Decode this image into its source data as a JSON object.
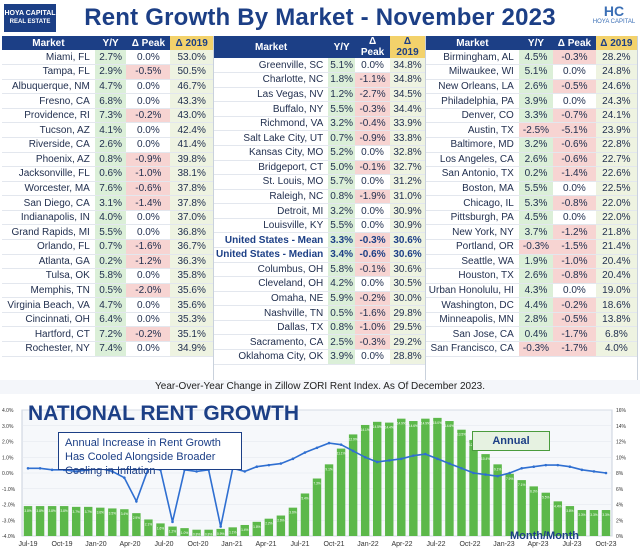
{
  "header": {
    "title": "Rent Growth By Market - November 2023",
    "logo_left_line1": "HOYA CAPITAL",
    "logo_left_line2": "REAL ESTATE",
    "logo_right_hc": "HC",
    "logo_right_sub": "HOYA CAPITAL"
  },
  "table": {
    "columns": [
      "Market",
      "Y/Y",
      "Δ Peak",
      "Δ 2019"
    ],
    "groups": [
      {
        "rows": [
          {
            "market": "Miami, FL",
            "yy": "2.7%",
            "peak": "0.0%",
            "d2019": "53.0%"
          },
          {
            "market": "Tampa, FL",
            "yy": "2.9%",
            "peak": "-0.5%",
            "d2019": "50.5%"
          },
          {
            "market": "Albuquerque, NM",
            "yy": "4.7%",
            "peak": "0.0%",
            "d2019": "46.7%"
          },
          {
            "market": "Fresno, CA",
            "yy": "6.8%",
            "peak": "0.0%",
            "d2019": "43.3%"
          },
          {
            "market": "Providence, RI",
            "yy": "7.3%",
            "peak": "-0.2%",
            "d2019": "43.0%"
          },
          {
            "market": "Tucson, AZ",
            "yy": "4.1%",
            "peak": "0.0%",
            "d2019": "42.4%"
          },
          {
            "market": "Riverside, CA",
            "yy": "2.6%",
            "peak": "0.0%",
            "d2019": "41.4%"
          },
          {
            "market": "Phoenix, AZ",
            "yy": "0.8%",
            "peak": "-0.9%",
            "d2019": "39.8%"
          },
          {
            "market": "Jacksonville, FL",
            "yy": "0.6%",
            "peak": "-1.0%",
            "d2019": "38.1%"
          },
          {
            "market": "Worcester, MA",
            "yy": "7.6%",
            "peak": "-0.6%",
            "d2019": "37.8%"
          },
          {
            "market": "San Diego, CA",
            "yy": "3.1%",
            "peak": "-1.4%",
            "d2019": "37.8%"
          },
          {
            "market": "Indianapolis, IN",
            "yy": "4.0%",
            "peak": "0.0%",
            "d2019": "37.0%"
          },
          {
            "market": "Grand Rapids, MI",
            "yy": "5.5%",
            "peak": "0.0%",
            "d2019": "36.8%"
          },
          {
            "market": "Orlando, FL",
            "yy": "0.7%",
            "peak": "-1.6%",
            "d2019": "36.7%"
          },
          {
            "market": "Atlanta, GA",
            "yy": "0.2%",
            "peak": "-1.2%",
            "d2019": "36.3%"
          },
          {
            "market": "Tulsa, OK",
            "yy": "5.8%",
            "peak": "0.0%",
            "d2019": "35.8%"
          },
          {
            "market": "Memphis, TN",
            "yy": "0.5%",
            "peak": "-2.0%",
            "d2019": "35.6%"
          },
          {
            "market": "Virginia Beach, VA",
            "yy": "4.7%",
            "peak": "0.0%",
            "d2019": "35.6%"
          },
          {
            "market": "Cincinnati, OH",
            "yy": "6.4%",
            "peak": "0.0%",
            "d2019": "35.3%"
          },
          {
            "market": "Hartford, CT",
            "yy": "7.2%",
            "peak": "-0.2%",
            "d2019": "35.1%"
          },
          {
            "market": "Rochester, NY",
            "yy": "7.4%",
            "peak": "0.0%",
            "d2019": "34.9%"
          }
        ]
      },
      {
        "rows": [
          {
            "market": "Greenville, SC",
            "yy": "5.1%",
            "peak": "0.0%",
            "d2019": "34.8%"
          },
          {
            "market": "Charlotte, NC",
            "yy": "1.8%",
            "peak": "-1.1%",
            "d2019": "34.8%"
          },
          {
            "market": "Las Vegas, NV",
            "yy": "1.2%",
            "peak": "-2.7%",
            "d2019": "34.5%"
          },
          {
            "market": "Buffalo, NY",
            "yy": "5.5%",
            "peak": "-0.3%",
            "d2019": "34.4%"
          },
          {
            "market": "Richmond, VA",
            "yy": "3.2%",
            "peak": "-0.4%",
            "d2019": "33.9%"
          },
          {
            "market": "Salt Lake City, UT",
            "yy": "0.7%",
            "peak": "-0.9%",
            "d2019": "33.8%"
          },
          {
            "market": "Kansas City, MO",
            "yy": "5.2%",
            "peak": "0.0%",
            "d2019": "32.8%"
          },
          {
            "market": "Bridgeport, CT",
            "yy": "5.0%",
            "peak": "-0.1%",
            "d2019": "32.7%"
          },
          {
            "market": "St. Louis, MO",
            "yy": "5.7%",
            "peak": "0.0%",
            "d2019": "31.2%"
          },
          {
            "market": "Raleigh, NC",
            "yy": "0.8%",
            "peak": "-1.9%",
            "d2019": "31.0%"
          },
          {
            "market": "Detroit, MI",
            "yy": "3.2%",
            "peak": "0.0%",
            "d2019": "30.9%"
          },
          {
            "market": "Louisville, KY",
            "yy": "5.5%",
            "peak": "0.0%",
            "d2019": "30.9%"
          },
          {
            "market": "United States - Mean",
            "yy": "3.3%",
            "peak": "-0.3%",
            "d2019": "30.6%",
            "us": true
          },
          {
            "market": "United States - Median",
            "yy": "3.4%",
            "peak": "-0.6%",
            "d2019": "30.6%",
            "us": true
          },
          {
            "market": "Columbus, OH",
            "yy": "5.8%",
            "peak": "-0.1%",
            "d2019": "30.6%"
          },
          {
            "market": "Cleveland, OH",
            "yy": "4.2%",
            "peak": "0.0%",
            "d2019": "30.5%"
          },
          {
            "market": "Omaha, NE",
            "yy": "5.9%",
            "peak": "-0.2%",
            "d2019": "30.0%"
          },
          {
            "market": "Nashville, TN",
            "yy": "0.5%",
            "peak": "-1.6%",
            "d2019": "29.8%"
          },
          {
            "market": "Dallas, TX",
            "yy": "0.8%",
            "peak": "-1.0%",
            "d2019": "29.5%"
          },
          {
            "market": "Sacramento, CA",
            "yy": "2.5%",
            "peak": "-0.3%",
            "d2019": "29.2%"
          },
          {
            "market": "Oklahoma City, OK",
            "yy": "3.9%",
            "peak": "0.0%",
            "d2019": "28.8%"
          }
        ]
      },
      {
        "rows": [
          {
            "market": "Birmingham, AL",
            "yy": "4.5%",
            "peak": "-0.3%",
            "d2019": "28.2%"
          },
          {
            "market": "Milwaukee, WI",
            "yy": "5.1%",
            "peak": "0.0%",
            "d2019": "24.8%"
          },
          {
            "market": "New Orleans, LA",
            "yy": "2.6%",
            "peak": "-0.5%",
            "d2019": "24.6%"
          },
          {
            "market": "Philadelphia, PA",
            "yy": "3.9%",
            "peak": "0.0%",
            "d2019": "24.3%"
          },
          {
            "market": "Denver, CO",
            "yy": "3.3%",
            "peak": "-0.7%",
            "d2019": "24.1%"
          },
          {
            "market": "Austin, TX",
            "yy": "-2.5%",
            "peak": "-5.1%",
            "d2019": "23.9%"
          },
          {
            "market": "Baltimore, MD",
            "yy": "3.2%",
            "peak": "-0.6%",
            "d2019": "22.8%"
          },
          {
            "market": "Los Angeles, CA",
            "yy": "2.6%",
            "peak": "-0.6%",
            "d2019": "22.7%"
          },
          {
            "market": "San Antonio, TX",
            "yy": "0.2%",
            "peak": "-1.4%",
            "d2019": "22.6%"
          },
          {
            "market": "Boston, MA",
            "yy": "5.5%",
            "peak": "0.0%",
            "d2019": "22.5%"
          },
          {
            "market": "Chicago, IL",
            "yy": "5.3%",
            "peak": "-0.8%",
            "d2019": "22.0%"
          },
          {
            "market": "Pittsburgh, PA",
            "yy": "4.5%",
            "peak": "0.0%",
            "d2019": "22.0%"
          },
          {
            "market": "New York, NY",
            "yy": "3.7%",
            "peak": "-1.2%",
            "d2019": "21.8%"
          },
          {
            "market": "Portland, OR",
            "yy": "-0.3%",
            "peak": "-1.5%",
            "d2019": "21.4%"
          },
          {
            "market": "Seattle, WA",
            "yy": "1.9%",
            "peak": "-1.0%",
            "d2019": "20.4%"
          },
          {
            "market": "Houston, TX",
            "yy": "2.6%",
            "peak": "-0.8%",
            "d2019": "20.4%"
          },
          {
            "market": "Urban Honolulu, HI",
            "yy": "4.3%",
            "peak": "0.0%",
            "d2019": "19.0%"
          },
          {
            "market": "Washington, DC",
            "yy": "4.4%",
            "peak": "-0.2%",
            "d2019": "18.6%"
          },
          {
            "market": "Minneapolis, MN",
            "yy": "2.8%",
            "peak": "-0.5%",
            "d2019": "13.8%"
          },
          {
            "market": "San Jose, CA",
            "yy": "0.4%",
            "peak": "-1.7%",
            "d2019": "6.8%"
          },
          {
            "market": "San Francisco, CA",
            "yy": "-0.3%",
            "peak": "-1.7%",
            "d2019": "4.0%"
          }
        ]
      }
    ]
  },
  "footnote": "Year-Over-Year Change in Zillow ZORI Rent Index. As Of December 2023.",
  "chart_data": {
    "type": "bar",
    "title": "NATIONAL RENT GROWTH",
    "annotation": "Annual Increase in Rent Growth Has Cooled Alongside Broader Cooling in Inflation",
    "legend": [
      "Annual",
      "Month/Month"
    ],
    "left_axis_ticks": [
      "4.0%",
      "3.0%",
      "2.0%",
      "1.0%",
      "0.0%",
      "-1.0%",
      "-2.0%",
      "-3.0%",
      "-4.0%"
    ],
    "right_axis_ticks": [
      "16%",
      "14%",
      "12%",
      "10%",
      "8%",
      "6%",
      "4%",
      "2%",
      "0%"
    ],
    "xtick_labels": [
      "Jul-19",
      "Oct-19",
      "Jan-20",
      "Apr-20",
      "Jul-20",
      "Oct-20",
      "Jan-21",
      "Apr-21",
      "Jul-21",
      "Oct-21",
      "Jan-22",
      "Apr-22",
      "Jul-22",
      "Oct-22",
      "Jan-23",
      "Apr-23",
      "Jul-23",
      "Oct-23"
    ],
    "annual_bar_labels": [
      "3.8%",
      "3.8%",
      "3.8%",
      "3.8%",
      "3.7%",
      "3.7%",
      "3.6%",
      "3.5%",
      "3.4%",
      "2.9%",
      "2.1%",
      "1.6%",
      "1.2%",
      "1.0%",
      "0.8%",
      "0.8%",
      "0.9%",
      "1.1%",
      "1.4%",
      "1.8%",
      "2.2%",
      "2.6%",
      "3.6%",
      "5.4%",
      "7.3%",
      "9.1%",
      "11.1%",
      "12.9%",
      "14.1%",
      "14.5%",
      "14.4%",
      "14.9%",
      "14.6%",
      "14.9%",
      "15.0%",
      "14.6%",
      "13.5%",
      "12.2%",
      "10.4%",
      "9.1%",
      "7.9%",
      "7.1%",
      "6.3%",
      "5.5%",
      "4.4%",
      "3.8%",
      "3.3%",
      "3.3%",
      "3.3%"
    ],
    "annual_values": [
      3.8,
      3.8,
      3.8,
      3.8,
      3.7,
      3.7,
      3.6,
      3.5,
      3.4,
      2.9,
      2.1,
      1.6,
      1.2,
      1.0,
      0.8,
      0.8,
      0.9,
      1.1,
      1.4,
      1.8,
      2.2,
      2.6,
      3.6,
      5.4,
      7.3,
      9.1,
      11.1,
      12.9,
      14.1,
      14.5,
      14.4,
      14.9,
      14.6,
      14.9,
      15.0,
      14.6,
      13.5,
      12.2,
      10.4,
      9.1,
      7.9,
      7.1,
      6.3,
      5.5,
      4.4,
      3.8,
      3.3,
      3.3,
      3.3
    ],
    "monthly_values": [
      0.3,
      0.3,
      0.2,
      0.2,
      0.1,
      0.2,
      0.3,
      0.1,
      -0.3,
      -1.8,
      0.3,
      0.2,
      -3.1,
      0.2,
      0.1,
      0.2,
      -3.4,
      0.3,
      0.1,
      0.4,
      0.5,
      0.6,
      0.9,
      1.3,
      1.6,
      1.9,
      1.8,
      1.4,
      1.0,
      0.7,
      0.8,
      0.9,
      1.1,
      1.2,
      0.9,
      0.6,
      0.3,
      0.0,
      -0.1,
      -0.2,
      0.0,
      0.3,
      0.4,
      0.5,
      0.5,
      0.4,
      0.2,
      0.1,
      0.0
    ],
    "left_axis_range": [
      -4,
      4
    ],
    "right_axis_range": [
      0,
      16
    ]
  }
}
